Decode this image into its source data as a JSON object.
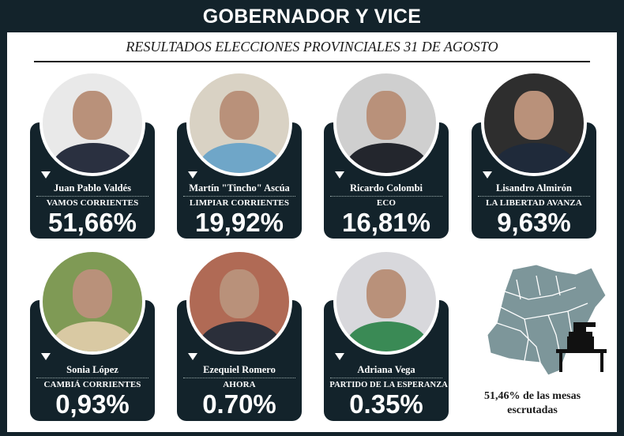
{
  "header": {
    "title": "GOBERNADOR Y VICE",
    "subtitle": "RESULTADOS ELECCIONES PROVINCIALES 31 DE AGOSTO"
  },
  "candidates": [
    {
      "name": "Juan Pablo Valdés",
      "party": "VAMOS CORRIENTES",
      "percent": "51,66%",
      "bg": "#e9e9e9",
      "suit": "#2a3040"
    },
    {
      "name": "Martín \"Tincho\" Ascúa",
      "party": "LIMPIAR CORRIENTES",
      "percent": "19,92%",
      "bg": "#d9d2c4",
      "suit": "#6fa6c8"
    },
    {
      "name": "Ricardo Colombi",
      "party": "ECO",
      "percent": "16,81%",
      "bg": "#cfcfcf",
      "suit": "#23262d"
    },
    {
      "name": "Lisandro Almirón",
      "party": "LA LIBERTAD AVANZA",
      "percent": "9,63%",
      "bg": "#2e2e2e",
      "suit": "#1f2a3a"
    },
    {
      "name": "Sonia López",
      "party": "CAMBIÁ CORRIENTES",
      "percent": "0,93%",
      "bg": "#7f9a55",
      "suit": "#d9c9a3"
    },
    {
      "name": "Ezequiel Romero",
      "party": "AHORA",
      "percent": "0.70%",
      "bg": "#b06a55",
      "suit": "#2b2f3a"
    },
    {
      "name": "Adriana Vega",
      "party": "PARTIDO DE LA ESPERANZA",
      "percent": "0.35%",
      "bg": "#d8d8dc",
      "suit": "#3a8a55"
    }
  ],
  "scrutiny": {
    "text": "51,46% de las mesas escrutadas",
    "percent": 51.46
  },
  "colors": {
    "frame": "#13232b",
    "map": "#7d969a"
  }
}
